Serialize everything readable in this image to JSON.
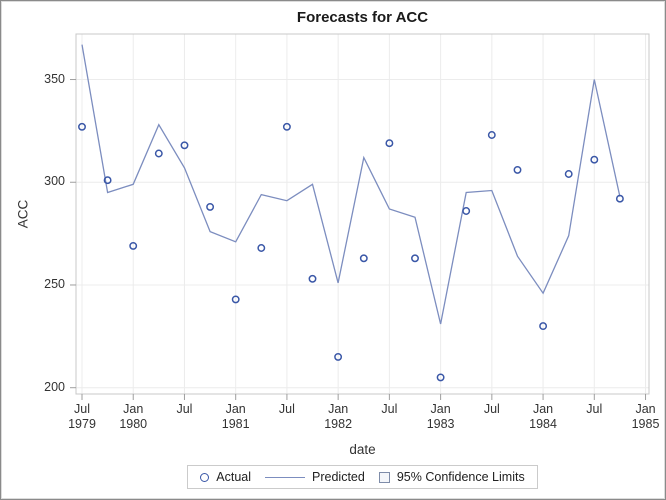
{
  "title": "Forecasts for ACC",
  "y_axis": {
    "label": "ACC"
  },
  "x_axis": {
    "label": "date"
  },
  "legend": {
    "actual": "Actual",
    "predicted": "Predicted",
    "confidence": "95% Confidence Limits"
  },
  "colors": {
    "marker": "#3a57a7",
    "line": "#7c8dbf",
    "grid": "#ececec",
    "frame": "#c8c8c8",
    "tick": "#9e9e9e",
    "text": "#333333"
  },
  "chart_data": {
    "type": "line",
    "title": "Forecasts for ACC",
    "xlabel": "date",
    "ylabel": "ACC",
    "ylim": [
      197,
      372
    ],
    "grid": true,
    "legend_position": "bottom",
    "x": [
      "Jul 1979",
      "Oct 1979",
      "Jan 1980",
      "Apr 1980",
      "Jul 1980",
      "Oct 1980",
      "Jan 1981",
      "Apr 1981",
      "Jul 1981",
      "Oct 1981",
      "Jan 1982",
      "Apr 1982",
      "Jul 1982",
      "Oct 1982",
      "Jan 1983",
      "Apr 1983",
      "Jul 1983",
      "Oct 1983",
      "Jan 1984",
      "Apr 1984",
      "Jul 1984",
      "Oct 1984"
    ],
    "series": [
      {
        "name": "Actual",
        "type": "scatter",
        "values": [
          327,
          301,
          269,
          314,
          318,
          288,
          243,
          268,
          327,
          253,
          215,
          263,
          319,
          263,
          205,
          286,
          323,
          306,
          230,
          304,
          311,
          292
        ]
      },
      {
        "name": "Predicted",
        "type": "line",
        "values": [
          367,
          295,
          299,
          328,
          307,
          276,
          271,
          294,
          291,
          299,
          251,
          312,
          287,
          283,
          231,
          295,
          296,
          264,
          246,
          274,
          350,
          293
        ]
      }
    ],
    "yticks": [
      350,
      300,
      250,
      200
    ],
    "xticks": [
      {
        "line1": "Jul",
        "line2": "1979"
      },
      {
        "line1": "Jan",
        "line2": "1980"
      },
      {
        "line1": "Jul",
        "line2": ""
      },
      {
        "line1": "Jan",
        "line2": "1981"
      },
      {
        "line1": "Jul",
        "line2": ""
      },
      {
        "line1": "Jan",
        "line2": "1982"
      },
      {
        "line1": "Jul",
        "line2": ""
      },
      {
        "line1": "Jan",
        "line2": "1983"
      },
      {
        "line1": "Jul",
        "line2": ""
      },
      {
        "line1": "Jan",
        "line2": "1984"
      },
      {
        "line1": "Jul",
        "line2": ""
      },
      {
        "line1": "Jan",
        "line2": "1985"
      }
    ]
  }
}
